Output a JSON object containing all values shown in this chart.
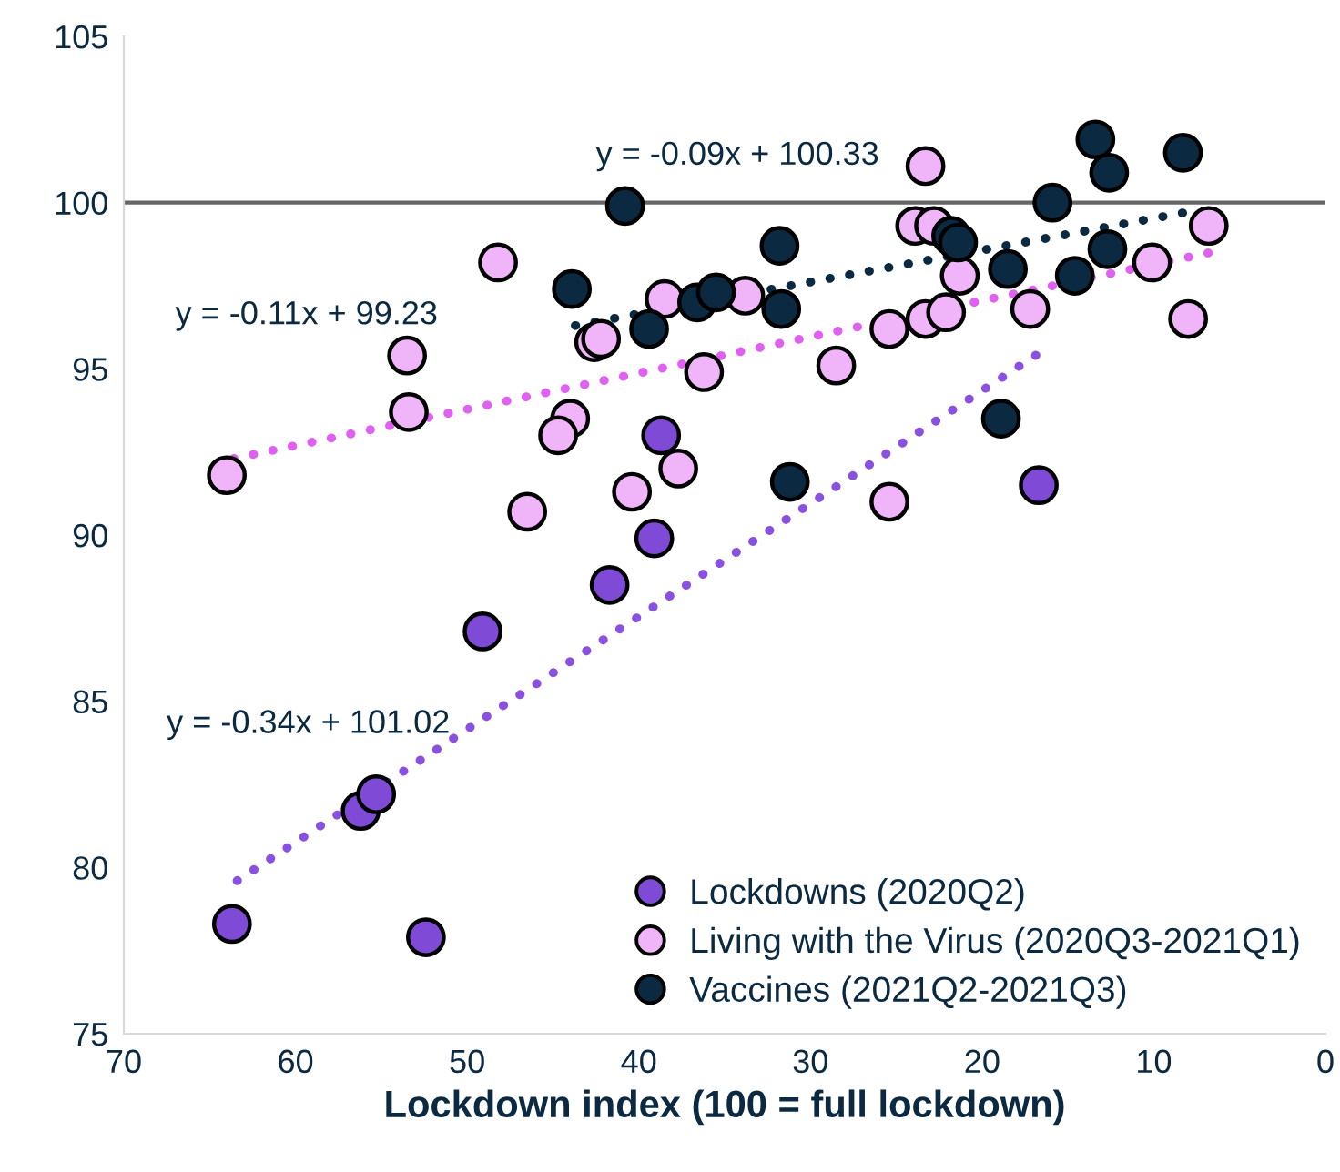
{
  "chart_data": {
    "type": "scatter",
    "xlabel": "Lockdown index (100 = full lockdown)",
    "xlim": [
      70,
      0
    ],
    "xticks": [
      70,
      60,
      50,
      40,
      30,
      20,
      10,
      0
    ],
    "ylim": [
      75,
      105
    ],
    "yticks": [
      75,
      80,
      85,
      90,
      95,
      100,
      105
    ],
    "grid": false,
    "legend": "bottom right",
    "marker": "circle",
    "ref_lines": [
      {
        "axis": "y",
        "value": 100,
        "color": "#666666"
      }
    ],
    "annotations": [
      "y = -0.09x + 100.33",
      "y = -0.11x + 99.23",
      "y = -0.34x + 101.02"
    ],
    "series": [
      {
        "name": "Lockdowns (2020Q2)",
        "color": "#7f4bd6",
        "x": [
          63.7,
          52.4,
          56.2,
          55.3,
          49.1,
          41.7,
          39.1,
          38.7,
          16.7
        ],
        "values": [
          78.3,
          77.9,
          81.7,
          82.2,
          87.1,
          88.5,
          89.9,
          93.0,
          91.5
        ]
      },
      {
        "name": "Living with the Virus (2020Q3-2021Q1)",
        "color": "#f0b4f8",
        "x": [
          48.2,
          53.5,
          53.4,
          64.0,
          44.0,
          44.7,
          46.5,
          40.4,
          37.7,
          42.6,
          42.2,
          38.5,
          36.2,
          33.8,
          28.5,
          25.4,
          25.4,
          23.3,
          23.9,
          22.8,
          23.3,
          22.1,
          21.3,
          17.2,
          10.1,
          6.8,
          8.0
        ],
        "values": [
          98.2,
          95.4,
          93.7,
          91.8,
          93.5,
          93.0,
          90.7,
          91.3,
          92.0,
          95.8,
          95.9,
          97.1,
          94.9,
          97.2,
          95.1,
          91.0,
          96.2,
          101.1,
          99.3,
          99.3,
          96.5,
          96.7,
          97.8,
          96.8,
          98.2,
          99.3,
          96.5
        ]
      },
      {
        "name": "Vaccines (2021Q2-2021Q3)",
        "color": "#0b2a42",
        "x": [
          40.8,
          43.9,
          39.4,
          36.6,
          35.5,
          31.8,
          31.7,
          31.2,
          21.8,
          21.4,
          18.5,
          18.9,
          15.9,
          14.6,
          13.4,
          12.6,
          12.7,
          8.3
        ],
        "values": [
          99.9,
          97.4,
          96.2,
          97.0,
          97.3,
          98.7,
          96.8,
          91.6,
          99.0,
          98.8,
          98.0,
          93.5,
          100.0,
          97.8,
          101.9,
          100.9,
          98.6,
          101.5
        ]
      },
      {
        "type": "line",
        "marker": "none",
        "line_style": "dotted",
        "color": "#8a50e0",
        "x": [
          63.4,
          16.6
        ],
        "values": [
          79.6,
          95.5
        ]
      },
      {
        "type": "line",
        "marker": "none",
        "line_style": "dotted",
        "color": "#e060f2",
        "x": [
          63.6,
          6.7
        ],
        "values": [
          92.3,
          98.5
        ]
      },
      {
        "type": "line",
        "marker": "none",
        "line_style": "dotted",
        "color": "#0b2a42",
        "x": [
          43.7,
          8.2
        ],
        "values": [
          96.3,
          99.7
        ]
      }
    ]
  }
}
